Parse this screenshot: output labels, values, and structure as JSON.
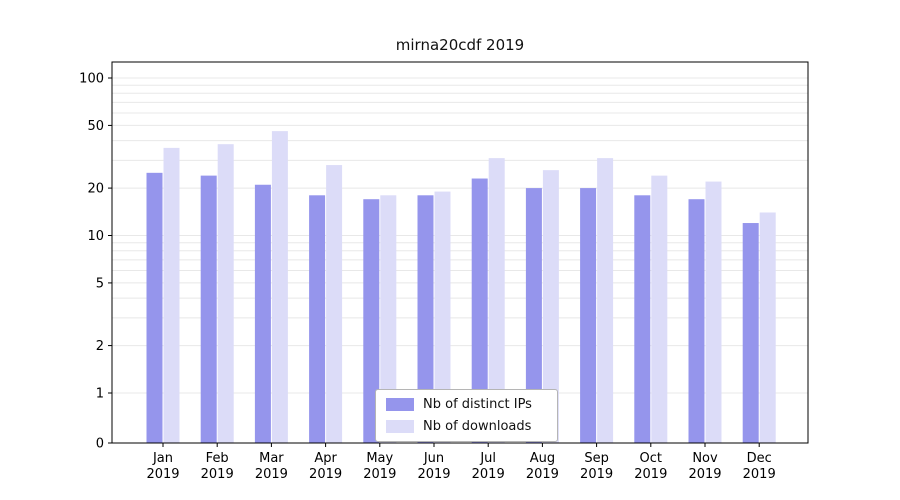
{
  "title": "mirna20cdf 2019",
  "colors": {
    "ips_bar": "#9595ec",
    "downloads_bar": "#dcdcf8",
    "gridline": "#e8e8e8",
    "axis": "#000000",
    "legend_border": "#b5b5b5",
    "background": "#ffffff"
  },
  "chart_data": {
    "type": "bar",
    "title": "mirna20cdf 2019",
    "yscale": "symlog",
    "grid": true,
    "legend_position": "lower center",
    "categories": [
      "Jan 2019",
      "Feb 2019",
      "Mar 2019",
      "Apr 2019",
      "May 2019",
      "Jun 2019",
      "Jul 2019",
      "Aug 2019",
      "Sep 2019",
      "Oct 2019",
      "Nov 2019",
      "Dec 2019"
    ],
    "series": [
      {
        "name": "Nb of distinct IPs",
        "color": "#9595ec",
        "values": [
          25,
          24,
          21,
          18,
          17,
          18,
          23,
          20,
          20,
          18,
          17,
          12
        ]
      },
      {
        "name": "Nb of downloads",
        "color": "#dcdcf8",
        "values": [
          36,
          38,
          46,
          28,
          18,
          19,
          31,
          26,
          31,
          24,
          22,
          14
        ]
      }
    ],
    "y_ticks": [
      0,
      1,
      2,
      5,
      10,
      20,
      50,
      100
    ],
    "minor_gridlines": [
      1,
      2,
      3,
      4,
      5,
      6,
      7,
      8,
      9,
      10,
      20,
      30,
      40,
      50,
      60,
      70,
      80,
      90,
      100
    ],
    "ylim": [
      0,
      126
    ],
    "xlabel": "",
    "ylabel": ""
  }
}
